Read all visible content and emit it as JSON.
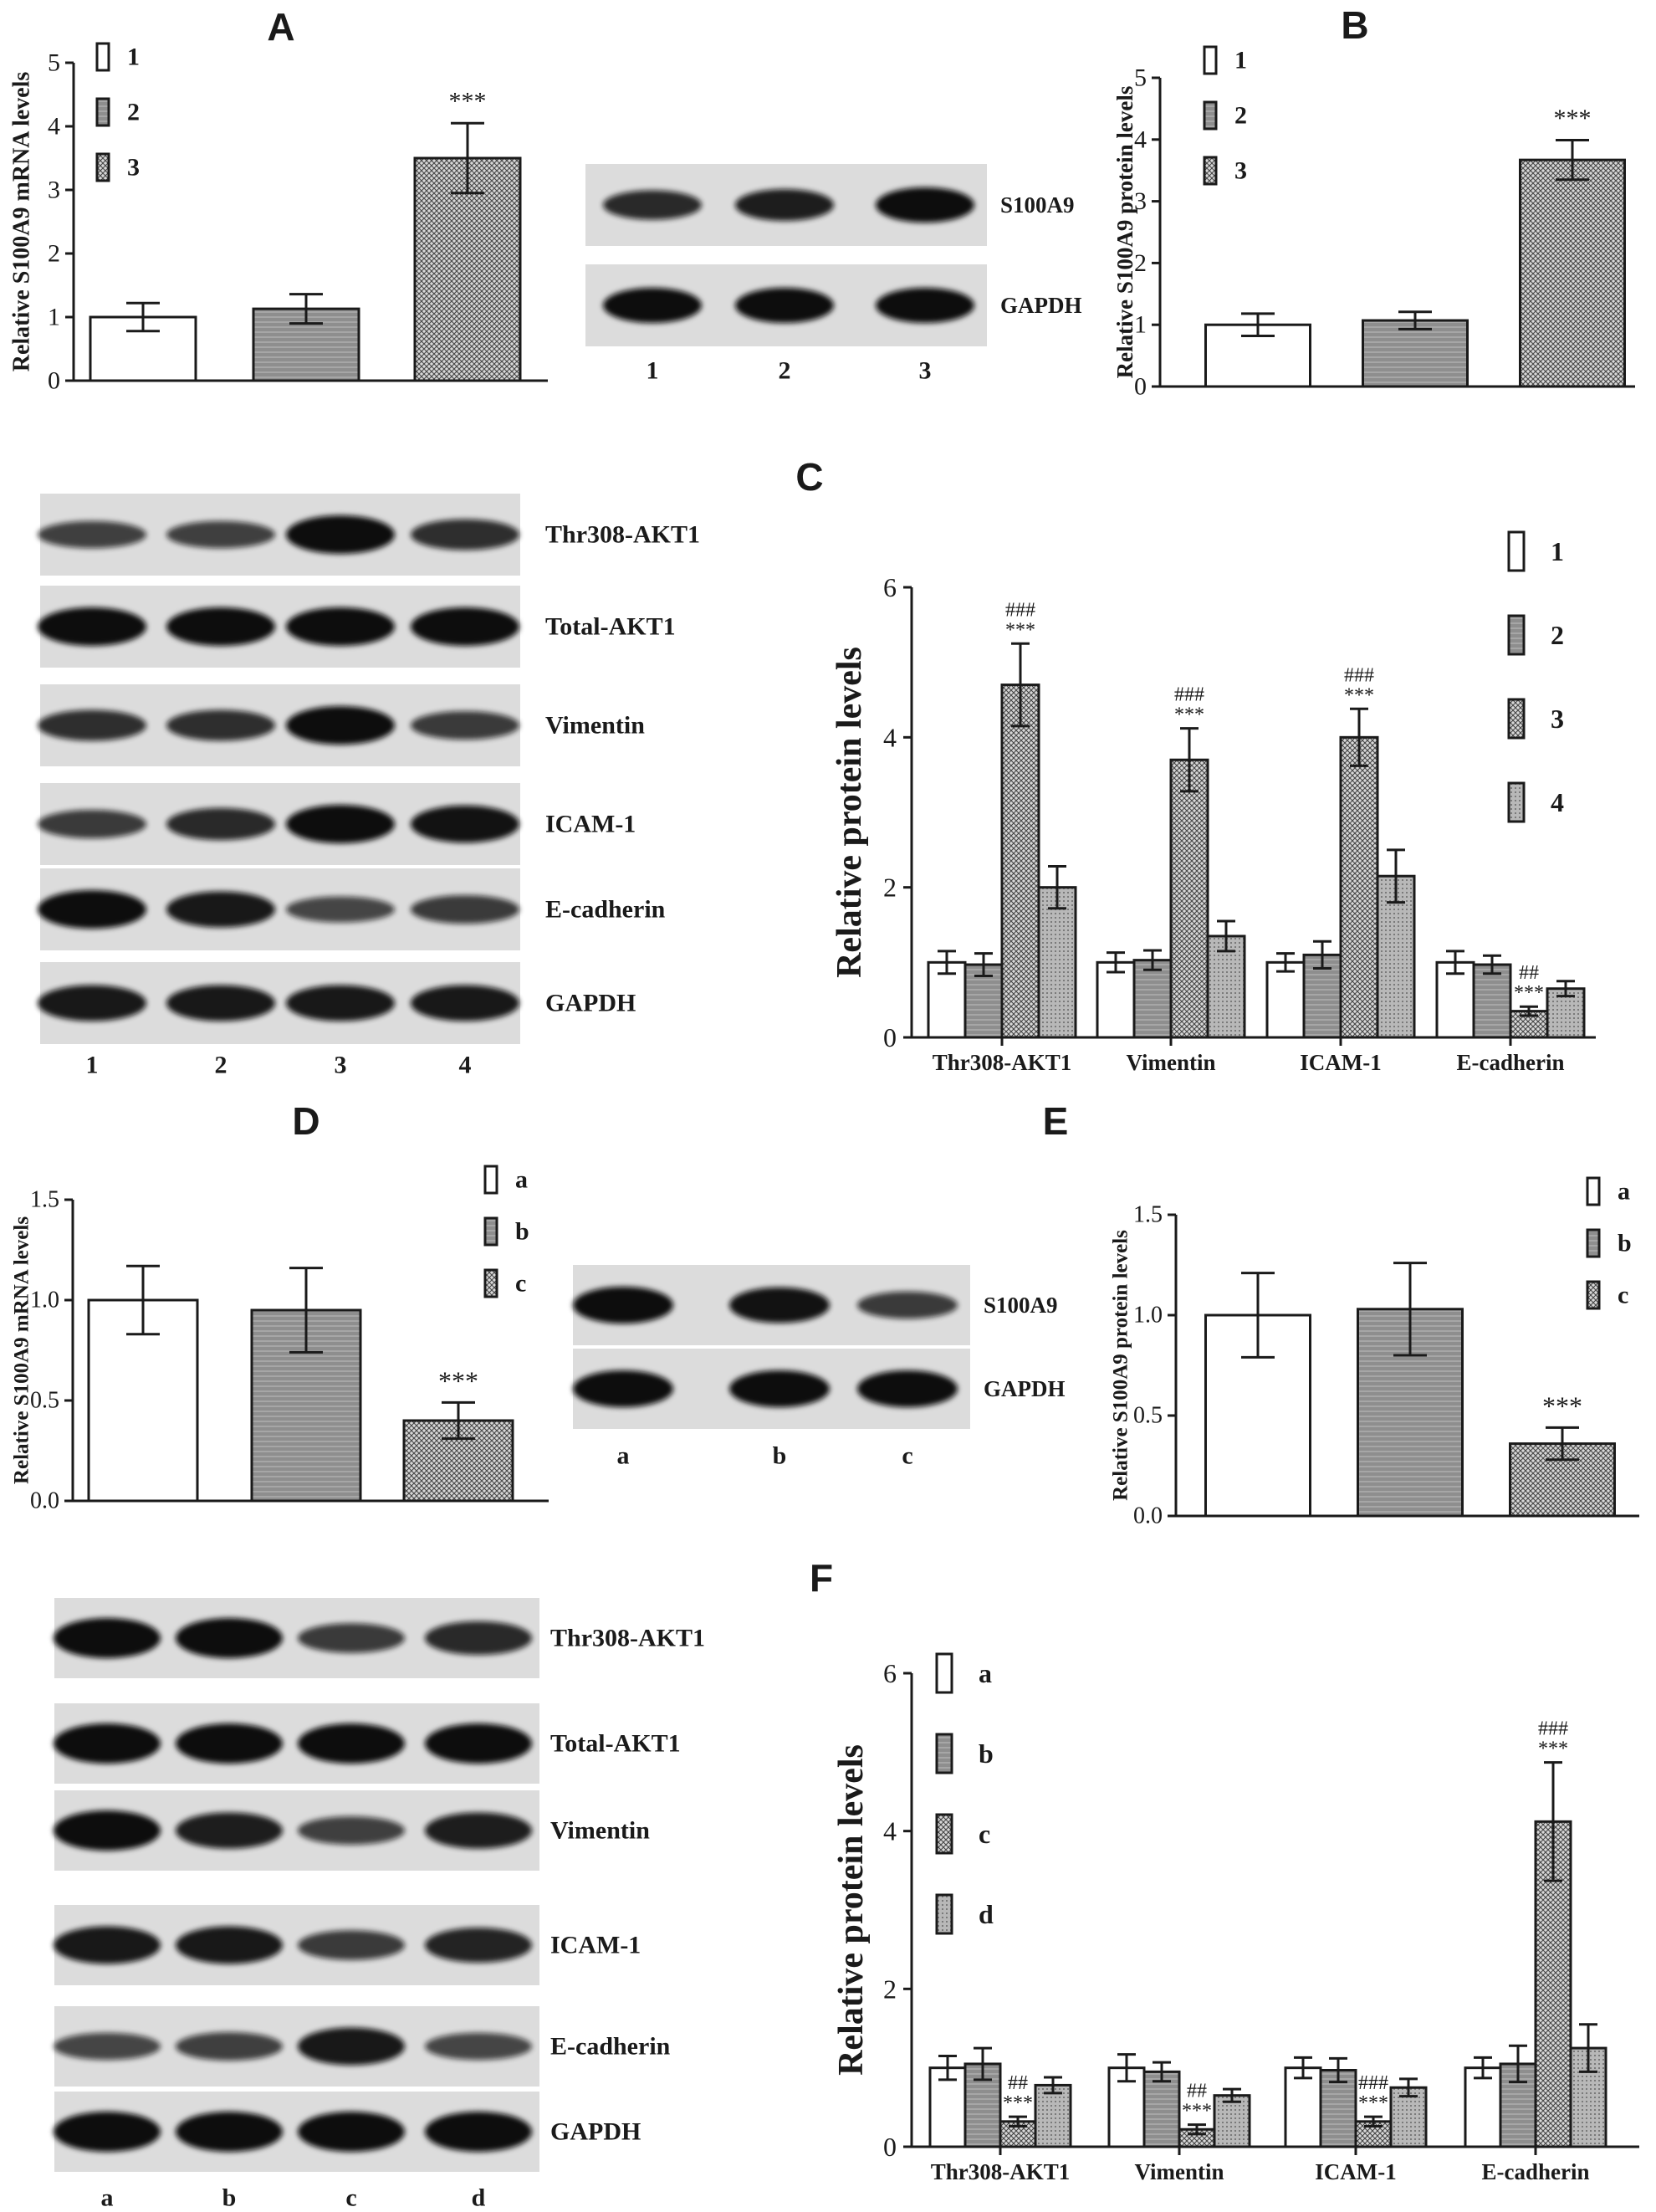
{
  "colors": {
    "ink": "#1a1a1a",
    "grey": "#8f8f8f",
    "blot_bg": "#dcdcdc",
    "band": "#0d0d0d"
  },
  "patterns": {
    "1": "white",
    "2": "grey-stripe",
    "3": "crosshatch",
    "4": "grey-dots",
    "a": "white",
    "b": "grey-stripe",
    "c": "crosshatch",
    "d": "grey-dots"
  },
  "panels": {
    "A": {
      "label": "A",
      "chart_data": {
        "type": "bar",
        "ylabel": "Relative S100A9 mRNA levels",
        "xlabel": "",
        "ylim": [
          0,
          5
        ],
        "yticks": [
          "0",
          "1",
          "2",
          "3",
          "4",
          "5"
        ],
        "legend": [
          "1",
          "2",
          "3"
        ],
        "values": [
          1.0,
          1.13,
          3.5
        ],
        "errors": [
          0.22,
          0.23,
          0.55
        ],
        "annotations": [
          "",
          "",
          "***"
        ]
      },
      "blot": {
        "proteins": [
          "S100A9",
          "GAPDH"
        ],
        "lanes": [
          "1",
          "2",
          "3"
        ]
      }
    },
    "B": {
      "label": "B",
      "chart_data": {
        "type": "bar",
        "ylabel": "Relative S100A9 protein levels",
        "xlabel": "",
        "ylim": [
          0,
          5
        ],
        "yticks": [
          "0",
          "1",
          "2",
          "3",
          "4",
          "5"
        ],
        "legend": [
          "1",
          "2",
          "3"
        ],
        "values": [
          1.0,
          1.07,
          3.67
        ],
        "errors": [
          0.18,
          0.14,
          0.32
        ],
        "annotations": [
          "",
          "",
          "***"
        ]
      }
    },
    "C": {
      "label": "C",
      "blot": {
        "proteins": [
          "Thr308-AKT1",
          "Total-AKT1",
          "Vimentin",
          "ICAM-1",
          "E-cadherin",
          "GAPDH"
        ],
        "lanes": [
          "1",
          "2",
          "3",
          "4"
        ]
      },
      "chart_data": {
        "type": "bar",
        "ylabel": "Relative protein levels",
        "xlabel": "",
        "ylim": [
          0,
          6
        ],
        "yticks": [
          "0",
          "2",
          "4",
          "6"
        ],
        "categories": [
          "Thr308-AKT1",
          "Vimentin",
          "ICAM-1",
          "E-cadherin"
        ],
        "legend": [
          "1",
          "2",
          "3",
          "4"
        ],
        "series": [
          {
            "name": "1",
            "values": [
              1.0,
              1.0,
              1.0,
              1.0
            ],
            "errors": [
              0.15,
              0.13,
              0.12,
              0.15
            ]
          },
          {
            "name": "2",
            "values": [
              0.97,
              1.03,
              1.1,
              0.97
            ],
            "errors": [
              0.15,
              0.13,
              0.18,
              0.12
            ]
          },
          {
            "name": "3",
            "values": [
              4.7,
              3.7,
              4.0,
              0.35
            ],
            "errors": [
              0.55,
              0.42,
              0.38,
              0.06
            ]
          },
          {
            "name": "4",
            "values": [
              2.0,
              1.35,
              2.15,
              0.65
            ],
            "errors": [
              0.28,
              0.2,
              0.35,
              0.1
            ]
          }
        ],
        "annotations": [
          {
            "category": 0,
            "series": 2,
            "top": "###",
            "bottom": "***"
          },
          {
            "category": 1,
            "series": 2,
            "top": "###",
            "bottom": "***"
          },
          {
            "category": 2,
            "series": 2,
            "top": "###",
            "bottom": "***"
          },
          {
            "category": 3,
            "series": 2,
            "top": "##",
            "bottom": "***"
          }
        ]
      }
    },
    "D": {
      "label": "D",
      "chart_data": {
        "type": "bar",
        "ylabel": "Relative S100A9 mRNA levels",
        "xlabel": "",
        "ylim": [
          0,
          1.5
        ],
        "yticks": [
          "0.0",
          "0.5",
          "1.0",
          "1.5"
        ],
        "legend": [
          "a",
          "b",
          "c"
        ],
        "values": [
          1.0,
          0.95,
          0.4
        ],
        "errors": [
          0.17,
          0.21,
          0.09
        ],
        "annotations": [
          "",
          "",
          "***"
        ]
      },
      "blot": {
        "proteins": [
          "S100A9",
          "GAPDH"
        ],
        "lanes": [
          "a",
          "b",
          "c"
        ]
      }
    },
    "E": {
      "label": "E",
      "chart_data": {
        "type": "bar",
        "ylabel": "Relative S100A9 protein levels",
        "xlabel": "",
        "ylim": [
          0,
          1.5
        ],
        "yticks": [
          "0.0",
          "0.5",
          "1.0",
          "1.5"
        ],
        "legend": [
          "a",
          "b",
          "c"
        ],
        "values": [
          1.0,
          1.03,
          0.36
        ],
        "errors": [
          0.21,
          0.23,
          0.08
        ],
        "annotations": [
          "",
          "",
          "***"
        ]
      }
    },
    "F": {
      "label": "F",
      "blot": {
        "proteins": [
          "Thr308-AKT1",
          "Total-AKT1",
          "Vimentin",
          "ICAM-1",
          "E-cadherin",
          "GAPDH"
        ],
        "lanes": [
          "a",
          "b",
          "c",
          "d"
        ]
      },
      "chart_data": {
        "type": "bar",
        "ylabel": "Relative protein levels",
        "xlabel": "",
        "ylim": [
          0,
          6
        ],
        "yticks": [
          "0",
          "2",
          "4",
          "6"
        ],
        "categories": [
          "Thr308-AKT1",
          "Vimentin",
          "ICAM-1",
          "E-cadherin"
        ],
        "legend": [
          "a",
          "b",
          "c",
          "d"
        ],
        "series": [
          {
            "name": "a",
            "values": [
              1.0,
              1.0,
              1.0,
              1.0
            ],
            "errors": [
              0.15,
              0.17,
              0.13,
              0.13
            ]
          },
          {
            "name": "b",
            "values": [
              1.05,
              0.95,
              0.97,
              1.05
            ],
            "errors": [
              0.2,
              0.12,
              0.15,
              0.23
            ]
          },
          {
            "name": "c",
            "values": [
              0.32,
              0.22,
              0.32,
              4.12
            ],
            "errors": [
              0.06,
              0.06,
              0.06,
              0.75
            ]
          },
          {
            "name": "d",
            "values": [
              0.78,
              0.65,
              0.75,
              1.25
            ],
            "errors": [
              0.1,
              0.08,
              0.11,
              0.3
            ]
          }
        ],
        "annotations": [
          {
            "category": 0,
            "series": 2,
            "top": "##",
            "bottom": "***"
          },
          {
            "category": 1,
            "series": 2,
            "top": "##",
            "bottom": "***"
          },
          {
            "category": 2,
            "series": 2,
            "top": "###",
            "bottom": "***"
          },
          {
            "category": 3,
            "series": 2,
            "top": "###",
            "bottom": "***"
          }
        ]
      }
    }
  }
}
